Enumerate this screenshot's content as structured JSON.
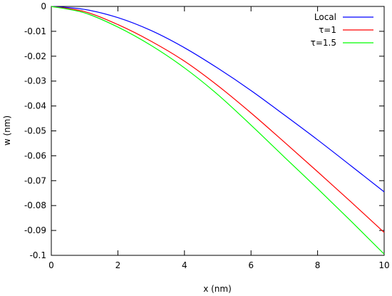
{
  "chart_data": {
    "type": "line",
    "title": "",
    "xlabel": "x (nm)",
    "ylabel": "w (nm)",
    "xlim": [
      0,
      10
    ],
    "ylim": [
      -0.1,
      0
    ],
    "x_ticks": [
      0,
      2,
      4,
      6,
      8,
      10
    ],
    "x_tick_labels": [
      "0",
      "2",
      "4",
      "6",
      "8",
      "10"
    ],
    "y_ticks": [
      0,
      -0.01,
      -0.02,
      -0.03,
      -0.04,
      -0.05,
      -0.06,
      -0.07,
      -0.08,
      -0.09,
      -0.1
    ],
    "y_tick_labels": [
      "0",
      "-0.01",
      "-0.02",
      "-0.03",
      "-0.04",
      "-0.05",
      "-0.06",
      "-0.07",
      "-0.08",
      "-0.09",
      "-0.1"
    ],
    "grid": false,
    "legend_position": "top-right",
    "x": [
      0,
      1,
      2,
      3,
      4,
      5,
      6,
      7,
      8,
      9,
      10
    ],
    "series": [
      {
        "name": "Local",
        "color": "#0000ff",
        "values": [
          0,
          -0.0012,
          -0.0045,
          -0.0097,
          -0.0166,
          -0.0248,
          -0.0338,
          -0.0436,
          -0.0536,
          -0.064,
          -0.0745
        ]
      },
      {
        "name": "τ=1",
        "color": "#ff0000",
        "values": [
          0,
          -0.0021,
          -0.0073,
          -0.014,
          -0.022,
          -0.0318,
          -0.0428,
          -0.0545,
          -0.0664,
          -0.0785,
          -0.0908
        ]
      },
      {
        "name": "τ=1.5",
        "color": "#00ff00",
        "values": [
          0,
          -0.0026,
          -0.0083,
          -0.0157,
          -0.0247,
          -0.0354,
          -0.0477,
          -0.0605,
          -0.0732,
          -0.0862,
          -0.0995
        ]
      }
    ]
  }
}
